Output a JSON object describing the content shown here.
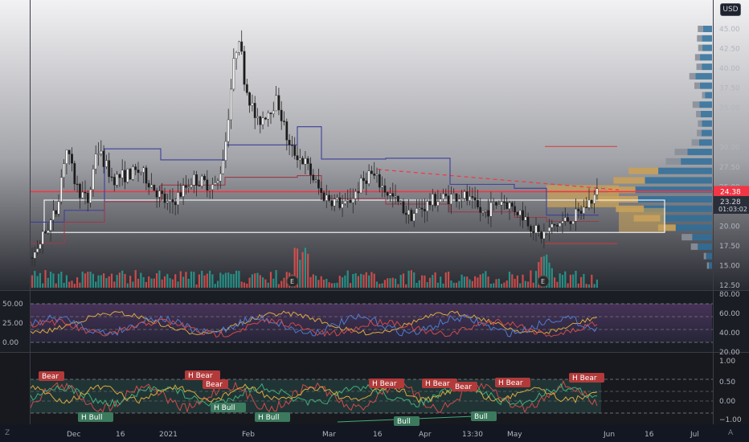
{
  "currency_button": "USD",
  "bottom_left_label": "Z",
  "bottom_right_label": "A",
  "price_axis": {
    "ticks": [
      "45.00",
      "42.50",
      "40.00",
      "37.50",
      "35.00",
      "32.50",
      "30.00",
      "27.50",
      "25.00",
      "22.50",
      "20.00",
      "17.50",
      "15.00",
      "12.50"
    ],
    "current_price": "24.38",
    "secondary_price": "23.28",
    "countdown": "01:03:02"
  },
  "rsi_pane": {
    "left_ticks": [
      "50.00",
      "25.00",
      "0.00"
    ],
    "right_ticks": [
      "80.00",
      "60.00",
      "40.00",
      "20.00"
    ]
  },
  "osc_pane": {
    "right_ticks": [
      "1.00",
      "0.50",
      "0.00",
      "−1.00"
    ],
    "signals": [
      {
        "text": "Bear",
        "type": "bear"
      },
      {
        "text": "H Bear",
        "type": "bear"
      },
      {
        "text": "Bear",
        "type": "bear"
      },
      {
        "text": "H Bull",
        "type": "bull"
      },
      {
        "text": "H Bull",
        "type": "bull"
      },
      {
        "text": "H Bull",
        "type": "bull"
      },
      {
        "text": "H Bear",
        "type": "bear"
      },
      {
        "text": "H Bear",
        "type": "bear"
      },
      {
        "text": "Bear",
        "type": "bear"
      },
      {
        "text": "H Bear",
        "type": "bear"
      },
      {
        "text": "H Bear",
        "type": "bear"
      },
      {
        "text": "Bull",
        "type": "bull"
      },
      {
        "text": "Bull",
        "type": "bull"
      }
    ]
  },
  "time_axis": [
    "Dec",
    "16",
    "2021",
    "Feb",
    "Mar",
    "16",
    "Apr",
    "13:30",
    "May",
    "Jun",
    "16",
    "Jul"
  ],
  "earnings_marker": "E",
  "colors": {
    "background": "#131722",
    "up": "#26a69a",
    "down": "#ef5350",
    "price_line": "#f23645",
    "bear_label": "#b23a3a",
    "bull_label": "#3c7a5e",
    "volume_profile_up": "#c8a15a",
    "volume_profile_down": "#2f6f9a"
  }
}
